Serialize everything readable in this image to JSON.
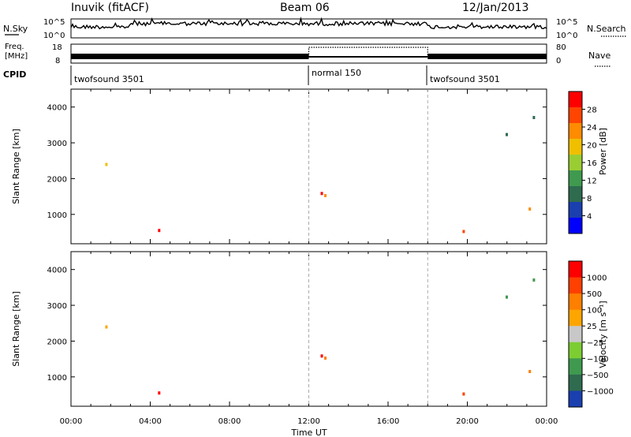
{
  "header": {
    "station": "Inuvik (fitACF)",
    "beam": "Beam 06",
    "date": "12/Jan/2013"
  },
  "nsky_panel": {
    "left_label": "N.Sky",
    "right_label": "N.Search",
    "left_ticks": [
      "10^5",
      "10^0"
    ],
    "right_ticks": [
      "10^5",
      "10^0"
    ]
  },
  "freq_panel": {
    "left_label_1": "Freq.",
    "left_label_2": "[MHz]",
    "right_label": "Nave",
    "left_ticks": [
      "18",
      "8"
    ],
    "right_ticks": [
      "80",
      "0"
    ]
  },
  "cpid_panel": {
    "label": "CPID",
    "segments": [
      {
        "name": "twofsound 3501",
        "start_hour": 0,
        "end_hour": 12
      },
      {
        "name": "normal 150",
        "start_hour": 12,
        "end_hour": 18
      },
      {
        "name": "twofsound 3501",
        "start_hour": 18,
        "end_hour": 24
      }
    ]
  },
  "colors": {
    "power_scale": [
      "#0000ff",
      "#1a3faf",
      "#2f6b4f",
      "#3f9a4f",
      "#9acd32",
      "#f0c000",
      "#ff8c00",
      "#ff4500",
      "#ff0000"
    ],
    "velocity_scale": [
      "#1a3faf",
      "#2f6b4f",
      "#3f9a4f",
      "#7ccd32",
      "#c8c8c8",
      "#ffa500",
      "#ff7f00",
      "#ff4000",
      "#ff0000"
    ]
  },
  "chart_data": [
    {
      "type": "heatmap",
      "title": "Power",
      "xlabel": "",
      "ylabel": "Slant Range [km]",
      "xlim": [
        0,
        24
      ],
      "ylim": [
        180,
        4500
      ],
      "y_ticks": [
        1000,
        2000,
        3000,
        4000
      ],
      "x_ticks": [
        "00:00",
        "04:00",
        "08:00",
        "12:00",
        "16:00",
        "20:00",
        "00:00"
      ],
      "colorbar": {
        "label": "Power [dB]",
        "ticks": [
          "4",
          "8",
          "12",
          "16",
          "20",
          "24",
          "28"
        ],
        "range": [
          0,
          30
        ]
      }
    },
    {
      "type": "heatmap",
      "title": "Velocity",
      "xlabel": "Time UT",
      "ylabel": "Slant Range [km]",
      "xlim": [
        0,
        24
      ],
      "ylim": [
        180,
        4500
      ],
      "y_ticks": [
        1000,
        2000,
        3000,
        4000
      ],
      "x_ticks": [
        "00:00",
        "04:00",
        "08:00",
        "12:00",
        "16:00",
        "20:00",
        "00:00"
      ],
      "colorbar": {
        "label": "Velocity [m s⁻¹]",
        "ticks": [
          "1000",
          "500",
          "100",
          "25",
          "−25",
          "−100",
          "−500",
          "−1000"
        ],
        "range": [
          -1000,
          1000
        ]
      }
    }
  ]
}
